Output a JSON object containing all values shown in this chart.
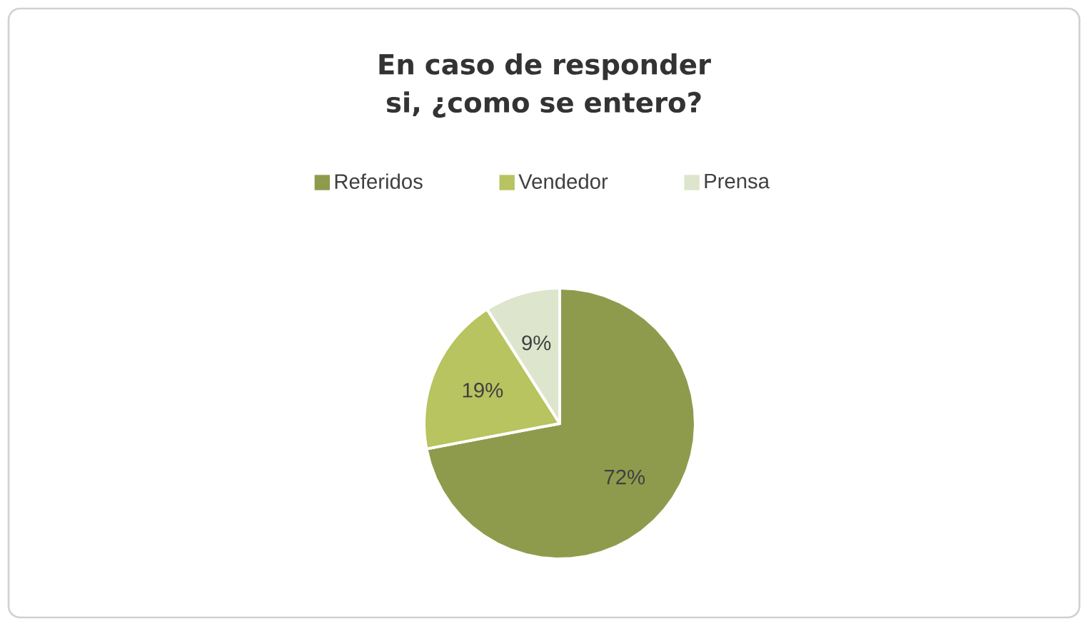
{
  "chart_data": {
    "type": "pie",
    "title": "En caso de responder si, ¿como se entero?",
    "categories": [
      "Referidos",
      "Vendedor",
      "Prensa"
    ],
    "values": [
      72,
      19,
      9
    ],
    "colors": [
      "#8f9b4c",
      "#b7c45f",
      "#dde5cc"
    ],
    "value_labels": [
      "72%",
      "19%",
      "9%"
    ],
    "legend": "top"
  }
}
